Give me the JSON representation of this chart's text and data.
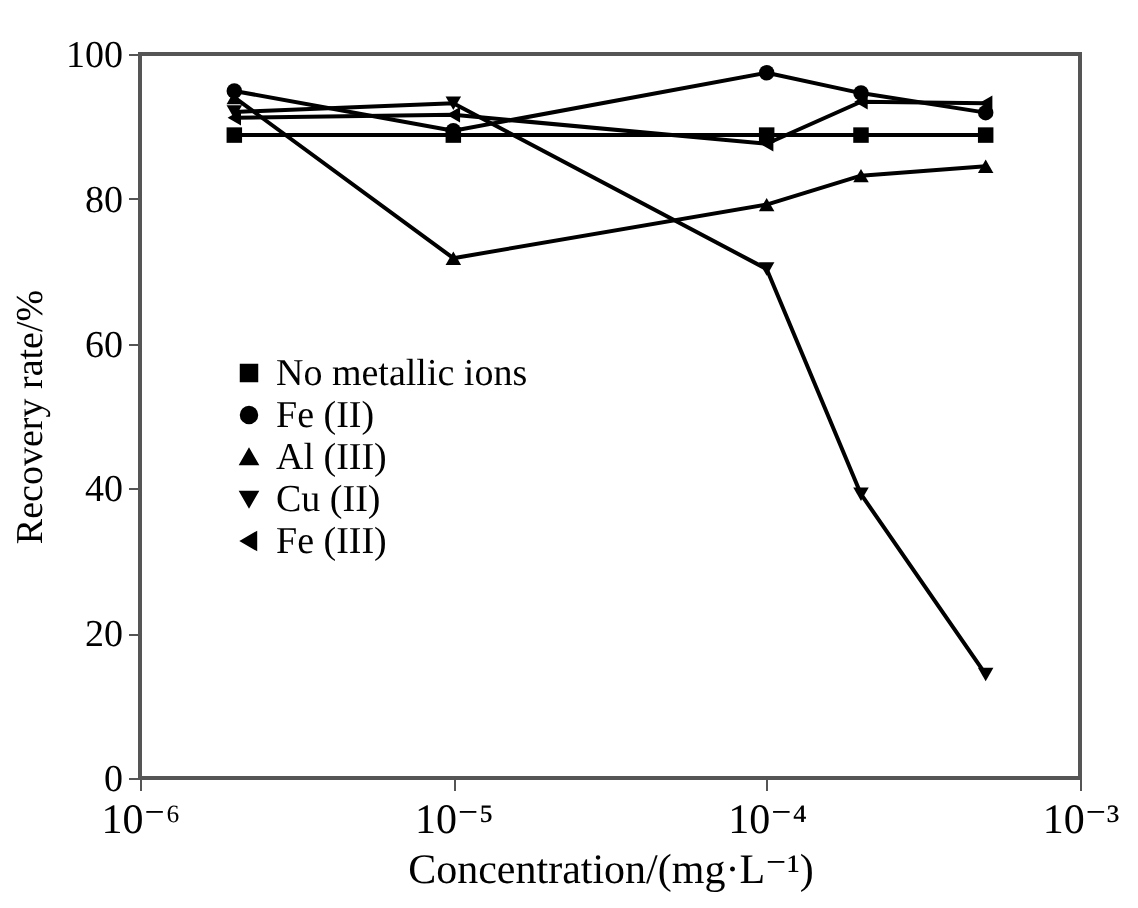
{
  "chart_data": {
    "type": "line",
    "xlabel": "Concentration/(mg·L⁻¹)",
    "ylabel": "Recovery rate/%",
    "log": "x",
    "xlim": [
      1e-06,
      0.001
    ],
    "xticks": [
      {
        "value": 1e-06,
        "label": "10⁻⁶"
      },
      {
        "value": 1e-05,
        "label": "10⁻⁵"
      },
      {
        "value": 0.0001,
        "label": "10⁻⁴"
      },
      {
        "value": 0.001,
        "label": "10⁻³"
      }
    ],
    "ylim": [
      0,
      100
    ],
    "yticks": [
      0,
      20,
      40,
      60,
      80,
      100
    ],
    "grid": false,
    "legend": "bottom left",
    "line_style": "solid",
    "x": [
      2e-06,
      1e-05,
      0.0001,
      0.0002,
      0.0005
    ],
    "series": [
      {
        "name": "No metallic ions",
        "color": "#000000",
        "marker": "square",
        "values": [
          88.8,
          88.8,
          88.8,
          88.8,
          88.8
        ]
      },
      {
        "name": "Fe (II)",
        "color": "#000000",
        "marker": "circle",
        "values": [
          94.9,
          89.4,
          97.4,
          94.6,
          91.9
        ]
      },
      {
        "name": "Al (III)",
        "color": "#000000",
        "marker": "triangle",
        "values": [
          94,
          71.8,
          79.2,
          83.2,
          84.5
        ]
      },
      {
        "name": "Cu (II)",
        "color": "#000000",
        "marker": "triangle-down",
        "values": [
          92,
          93.2,
          70.3,
          39.2,
          14.3
        ]
      },
      {
        "name": "Fe (III)",
        "color": "#000000",
        "marker": "triangle-left",
        "values": [
          91.2,
          91.6,
          87.6,
          93.4,
          93.2
        ]
      }
    ]
  }
}
